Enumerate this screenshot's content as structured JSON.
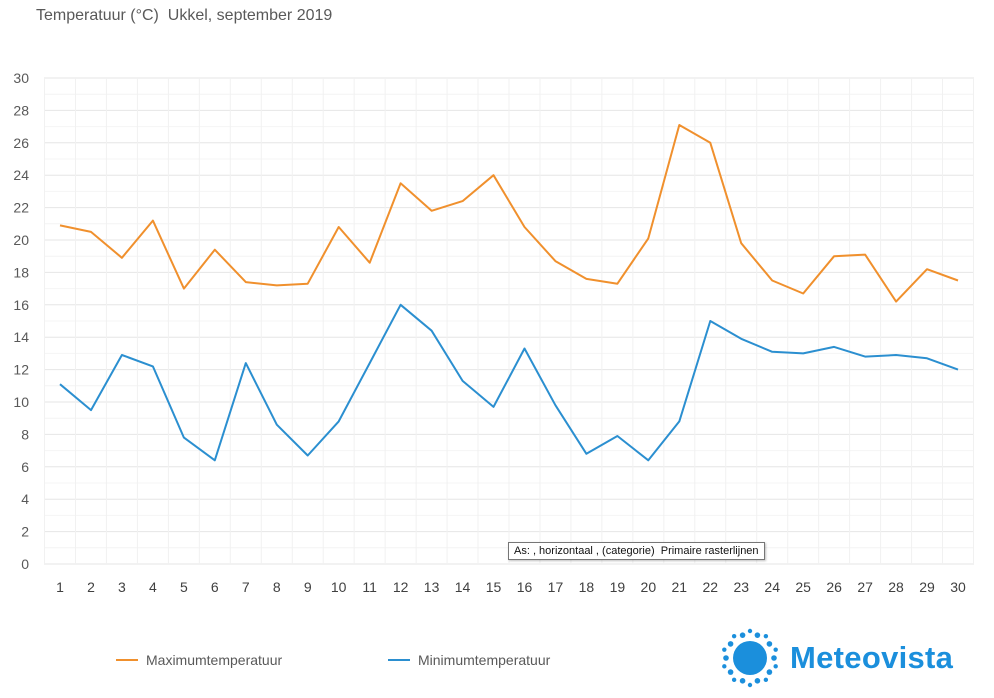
{
  "chart_title": "Temperatuur (°C)  Ukkel, september 2019",
  "tooltip": "As: , horizontaal , (categorie)  Primaire rasterlijnen",
  "brand": {
    "name": "Meteovista",
    "logo_icon": "sun-icon",
    "color": "#1b8fdc"
  },
  "chart_data": {
    "type": "line",
    "title": "Temperatuur (°C)  Ukkel, september 2019",
    "xlabel": "",
    "ylabel": "",
    "ylim": [
      0,
      30
    ],
    "yticks": [
      0,
      2,
      4,
      6,
      8,
      10,
      12,
      14,
      16,
      18,
      20,
      22,
      24,
      26,
      28,
      30
    ],
    "categories": [
      "1",
      "2",
      "3",
      "4",
      "5",
      "6",
      "7",
      "8",
      "9",
      "10",
      "11",
      "12",
      "13",
      "14",
      "15",
      "16",
      "17",
      "18",
      "19",
      "20",
      "21",
      "22",
      "23",
      "24",
      "25",
      "26",
      "27",
      "28",
      "29",
      "30"
    ],
    "grid": true,
    "legend_position": "bottom-left",
    "series": [
      {
        "name": "Maximumtemperatuur",
        "color": "#f0902d",
        "values": [
          20.9,
          20.5,
          18.9,
          21.2,
          17.0,
          19.4,
          17.4,
          17.2,
          17.3,
          20.8,
          18.6,
          23.5,
          21.8,
          22.4,
          24.0,
          20.8,
          18.7,
          17.6,
          17.3,
          20.1,
          27.1,
          26.0,
          19.8,
          17.5,
          16.7,
          19.0,
          19.1,
          16.2,
          18.2,
          17.5
        ]
      },
      {
        "name": "Minimumtemperatuur",
        "color": "#2b8fd0",
        "values": [
          11.1,
          9.5,
          12.9,
          12.2,
          7.8,
          6.4,
          12.4,
          8.6,
          6.7,
          8.8,
          12.4,
          16.0,
          14.4,
          11.3,
          9.7,
          13.3,
          9.8,
          6.8,
          7.9,
          6.4,
          8.8,
          15.0,
          13.9,
          13.1,
          13.0,
          13.4,
          12.8,
          12.9,
          12.7,
          12.0
        ]
      }
    ]
  }
}
